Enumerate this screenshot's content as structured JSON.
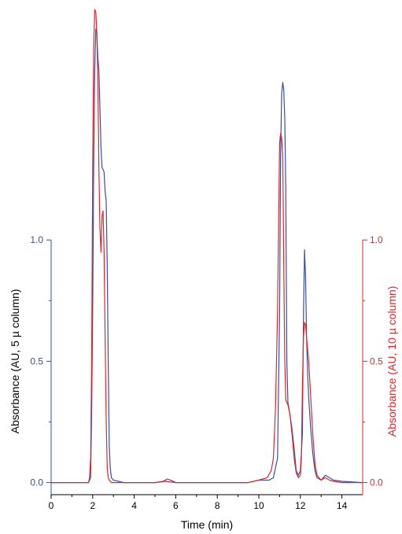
{
  "chart_data": {
    "type": "line",
    "title": "",
    "xlabel": "Time (min)",
    "xlim": [
      0,
      15
    ],
    "xticks": [
      0,
      2,
      4,
      6,
      8,
      10,
      12,
      14
    ],
    "grid": false,
    "legend": "none",
    "y_left": {
      "label": "Absorbance (AU, 5 µ column)",
      "lim": [
        -0.05,
        1.97
      ],
      "ticks": [
        0.0,
        0.5,
        1.0
      ],
      "tick_labels": [
        "0.0",
        "0.5",
        "1.0"
      ],
      "color": "#3a4f9e"
    },
    "y_right": {
      "label": "Absorbance (AU, 10 µ column)",
      "lim": [
        -0.05,
        1.97
      ],
      "ticks": [
        0.0,
        0.5,
        1.0
      ],
      "tick_labels": [
        "0.0",
        "0.5",
        "1.0"
      ],
      "color": "#e0262b"
    },
    "series": [
      {
        "axis": "left",
        "color": "#3a4f9e",
        "x": [
          0,
          1.8,
          1.9,
          1.95,
          2.0,
          2.05,
          2.1,
          2.15,
          2.2,
          2.25,
          2.3,
          2.35,
          2.4,
          2.45,
          2.5,
          2.55,
          2.6,
          2.65,
          2.7,
          2.75,
          2.8,
          2.85,
          2.9,
          3.0,
          3.5,
          5.0,
          5.4,
          5.6,
          5.8,
          6.0,
          9.5,
          10.0,
          10.5,
          10.7,
          10.9,
          11.0,
          11.05,
          11.1,
          11.15,
          11.2,
          11.25,
          11.3,
          11.35,
          11.4,
          11.5,
          11.6,
          11.7,
          11.8,
          11.9,
          12.0,
          12.1,
          12.15,
          12.2,
          12.25,
          12.3,
          12.35,
          12.4,
          12.5,
          12.6,
          12.7,
          12.8,
          13.0,
          13.2,
          13.4,
          13.6,
          14.0,
          15.0
        ],
        "y": [
          0,
          0.0,
          0.02,
          0.3,
          0.7,
          1.3,
          1.7,
          1.87,
          1.85,
          1.75,
          1.7,
          1.55,
          1.38,
          1.3,
          1.29,
          1.28,
          1.2,
          1.16,
          0.9,
          0.5,
          0.15,
          0.06,
          0.02,
          0.01,
          0.0,
          0.0,
          0.005,
          0.015,
          0.008,
          0.0,
          0.0,
          0.01,
          0.01,
          0.02,
          0.1,
          0.7,
          1.35,
          1.6,
          1.65,
          1.62,
          1.5,
          1.2,
          0.5,
          0.33,
          0.28,
          0.22,
          0.14,
          0.05,
          0.03,
          0.05,
          0.2,
          0.7,
          0.96,
          0.85,
          0.6,
          0.45,
          0.35,
          0.22,
          0.12,
          0.05,
          0.02,
          0.01,
          0.03,
          0.02,
          0.01,
          0.005,
          0.0
        ]
      },
      {
        "axis": "right",
        "color": "#e0262b",
        "x": [
          0,
          1.8,
          1.85,
          1.9,
          1.95,
          2.0,
          2.05,
          2.1,
          2.15,
          2.2,
          2.25,
          2.3,
          2.35,
          2.4,
          2.45,
          2.5,
          2.55,
          2.6,
          2.65,
          2.7,
          2.75,
          2.8,
          2.85,
          2.9,
          3.0,
          5.0,
          5.5,
          6.0,
          9.5,
          10.0,
          10.4,
          10.6,
          10.7,
          10.8,
          10.9,
          11.0,
          11.05,
          11.1,
          11.15,
          11.2,
          11.25,
          11.3,
          11.4,
          11.5,
          11.6,
          11.7,
          11.8,
          11.9,
          12.0,
          12.05,
          12.1,
          12.15,
          12.2,
          12.25,
          12.3,
          12.4,
          12.5,
          12.6,
          12.7,
          12.8,
          13.0,
          13.2,
          13.4,
          13.6,
          14.0,
          15.0
        ],
        "y": [
          0,
          0.0,
          0.02,
          0.1,
          0.5,
          1.3,
          1.8,
          1.95,
          1.94,
          1.85,
          1.65,
          1.3,
          1.05,
          0.95,
          1.1,
          1.12,
          0.95,
          0.6,
          0.25,
          0.06,
          0.02,
          0.01,
          0.005,
          0.0,
          0.0,
          0.0,
          0.005,
          0.0,
          0.0,
          0.01,
          0.02,
          0.05,
          0.1,
          0.3,
          0.7,
          1.4,
          1.44,
          1.42,
          1.35,
          0.9,
          0.5,
          0.34,
          0.32,
          0.28,
          0.2,
          0.1,
          0.04,
          0.02,
          0.03,
          0.1,
          0.4,
          0.6,
          0.66,
          0.65,
          0.6,
          0.5,
          0.35,
          0.2,
          0.08,
          0.03,
          0.01,
          0.02,
          0.01,
          0.005,
          0.0,
          0.0
        ]
      }
    ]
  }
}
